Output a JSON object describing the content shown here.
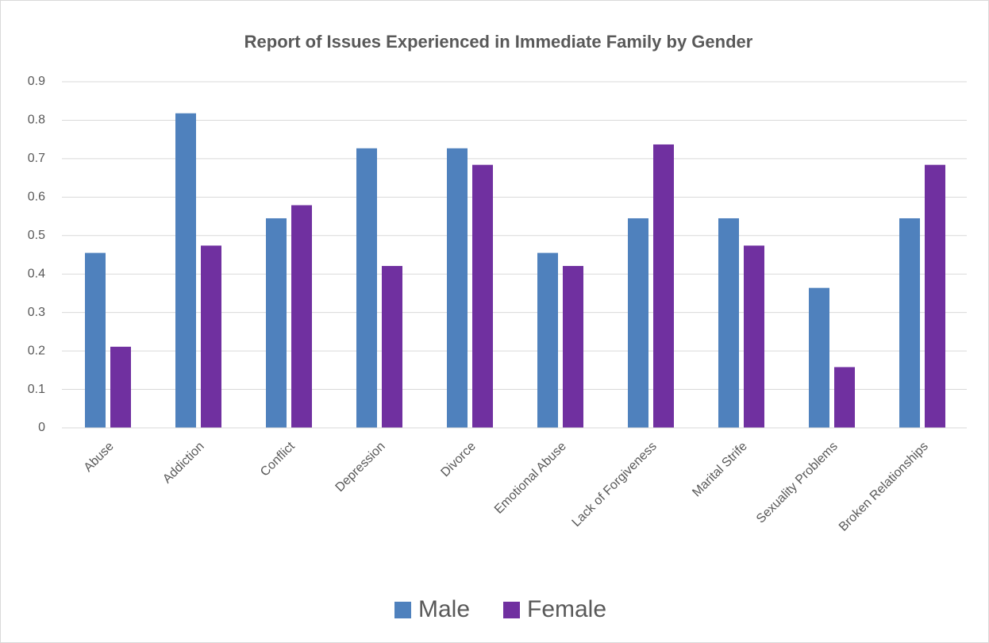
{
  "chart_data": {
    "type": "bar",
    "title": "Report of Issues Experienced in Immediate Family by Gender",
    "categories": [
      "Abuse",
      "Addiction",
      "Conflict",
      "Depression",
      "Divorce",
      "Emotional Abuse",
      "Lack of Forgiveness",
      "Marital Strife",
      "Sexuality Problems",
      "Broken Relationships"
    ],
    "series": [
      {
        "name": "Male",
        "color": "#4f81bd",
        "values": [
          0.455,
          0.818,
          0.545,
          0.727,
          0.727,
          0.455,
          0.545,
          0.545,
          0.364,
          0.545
        ]
      },
      {
        "name": "Female",
        "color": "#7030a0",
        "values": [
          0.211,
          0.474,
          0.579,
          0.421,
          0.684,
          0.421,
          0.737,
          0.474,
          0.158,
          0.684
        ]
      }
    ],
    "ylim": [
      0,
      0.9
    ],
    "yticks": [
      0,
      0.1,
      0.2,
      0.3,
      0.4,
      0.5,
      0.6,
      0.7,
      0.8,
      0.9
    ],
    "grid": true,
    "legend": "bottom"
  }
}
